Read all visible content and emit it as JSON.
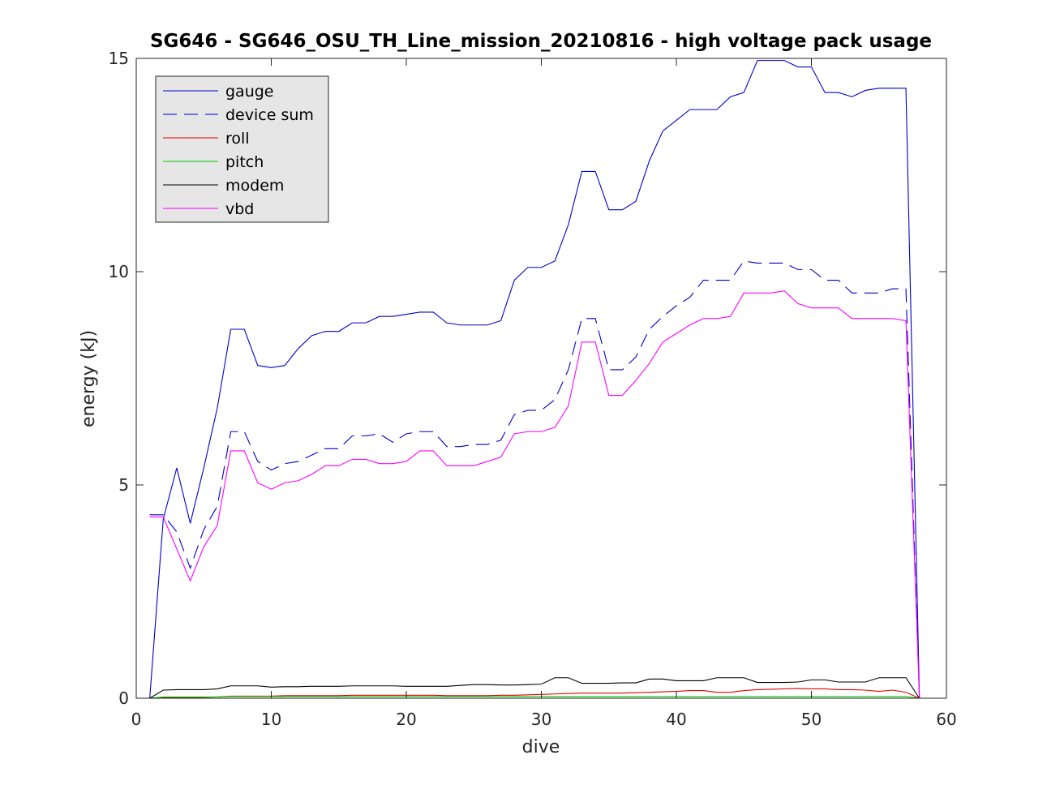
{
  "chart_data": {
    "type": "line",
    "title": "SG646 - SG646_OSU_TH_Line_mission_20210816 - high voltage pack usage",
    "xlabel": "dive",
    "ylabel": "energy (kJ)",
    "xlim": [
      0,
      60
    ],
    "ylim": [
      0,
      15
    ],
    "xticks": [
      0,
      10,
      20,
      30,
      40,
      50,
      60
    ],
    "yticks": [
      0,
      5,
      10,
      15
    ],
    "xtick_labels": [
      "0",
      "10",
      "20",
      "30",
      "40",
      "50",
      "60"
    ],
    "ytick_labels": [
      "0",
      "5",
      "10",
      "15"
    ],
    "grid": false,
    "legend_position": "top-left",
    "x": [
      1,
      2,
      3,
      4,
      5,
      6,
      7,
      8,
      9,
      10,
      11,
      12,
      13,
      14,
      15,
      16,
      17,
      18,
      19,
      20,
      21,
      22,
      23,
      24,
      25,
      26,
      27,
      28,
      29,
      30,
      31,
      32,
      33,
      34,
      35,
      36,
      37,
      38,
      39,
      40,
      41,
      42,
      43,
      44,
      45,
      46,
      47,
      48,
      49,
      50,
      51,
      52,
      53,
      54,
      55,
      56,
      57,
      58
    ],
    "series": [
      {
        "name": "gauge",
        "color": "#0000cc",
        "dash": "solid",
        "values": [
          0.0,
          4.2,
          5.4,
          4.1,
          5.4,
          6.8,
          8.65,
          8.65,
          7.8,
          7.75,
          7.8,
          8.2,
          8.5,
          8.6,
          8.6,
          8.8,
          8.8,
          8.95,
          8.95,
          9.0,
          9.05,
          9.05,
          8.8,
          8.75,
          8.75,
          8.75,
          8.85,
          9.8,
          10.1,
          10.1,
          10.25,
          11.1,
          12.35,
          12.35,
          11.45,
          11.45,
          11.65,
          12.6,
          13.3,
          13.55,
          13.8,
          13.8,
          13.8,
          14.1,
          14.2,
          14.95,
          14.95,
          14.95,
          14.8,
          14.8,
          14.2,
          14.2,
          14.1,
          14.25,
          14.3,
          14.3,
          14.3,
          0.0
        ]
      },
      {
        "name": "device sum",
        "color": "#0000cc",
        "dash": "dashed",
        "values": [
          4.3,
          4.3,
          3.9,
          3.05,
          3.95,
          4.5,
          6.25,
          6.25,
          5.55,
          5.35,
          5.5,
          5.55,
          5.7,
          5.85,
          5.85,
          6.15,
          6.15,
          6.2,
          6.0,
          6.2,
          6.25,
          6.25,
          5.9,
          5.9,
          5.95,
          5.95,
          6.05,
          6.65,
          6.75,
          6.75,
          7.0,
          7.7,
          8.9,
          8.9,
          7.7,
          7.7,
          8.0,
          8.65,
          8.95,
          9.2,
          9.4,
          9.8,
          9.8,
          9.8,
          10.25,
          10.2,
          10.2,
          10.2,
          10.05,
          10.05,
          9.8,
          9.8,
          9.5,
          9.5,
          9.5,
          9.6,
          9.6,
          0.0
        ]
      },
      {
        "name": "roll",
        "color": "#e60000",
        "dash": "solid",
        "values": [
          0.0,
          0.02,
          0.02,
          0.02,
          0.02,
          0.03,
          0.05,
          0.05,
          0.05,
          0.05,
          0.06,
          0.06,
          0.06,
          0.06,
          0.06,
          0.07,
          0.07,
          0.07,
          0.07,
          0.07,
          0.07,
          0.07,
          0.06,
          0.06,
          0.06,
          0.06,
          0.07,
          0.07,
          0.08,
          0.09,
          0.1,
          0.11,
          0.12,
          0.12,
          0.12,
          0.12,
          0.13,
          0.14,
          0.15,
          0.16,
          0.18,
          0.18,
          0.14,
          0.14,
          0.18,
          0.2,
          0.21,
          0.22,
          0.23,
          0.22,
          0.22,
          0.2,
          0.2,
          0.19,
          0.16,
          0.19,
          0.14,
          0.0
        ]
      },
      {
        "name": "pitch",
        "color": "#00cc00",
        "dash": "solid",
        "values": [
          0.0,
          0.03,
          0.03,
          0.03,
          0.03,
          0.03,
          0.04,
          0.04,
          0.04,
          0.04,
          0.04,
          0.04,
          0.04,
          0.04,
          0.04,
          0.04,
          0.04,
          0.04,
          0.04,
          0.04,
          0.04,
          0.04,
          0.04,
          0.04,
          0.04,
          0.04,
          0.04,
          0.04,
          0.04,
          0.04,
          0.04,
          0.04,
          0.04,
          0.04,
          0.04,
          0.04,
          0.04,
          0.04,
          0.04,
          0.04,
          0.04,
          0.04,
          0.04,
          0.04,
          0.04,
          0.04,
          0.04,
          0.04,
          0.04,
          0.04,
          0.04,
          0.04,
          0.04,
          0.04,
          0.04,
          0.04,
          0.04,
          0.0
        ]
      },
      {
        "name": "modem",
        "color": "#000000",
        "dash": "solid",
        "values": [
          0.0,
          0.19,
          0.2,
          0.2,
          0.2,
          0.22,
          0.29,
          0.29,
          0.29,
          0.26,
          0.27,
          0.27,
          0.28,
          0.28,
          0.28,
          0.29,
          0.29,
          0.29,
          0.29,
          0.28,
          0.28,
          0.28,
          0.28,
          0.3,
          0.32,
          0.32,
          0.31,
          0.31,
          0.32,
          0.33,
          0.48,
          0.48,
          0.35,
          0.35,
          0.35,
          0.36,
          0.36,
          0.45,
          0.45,
          0.41,
          0.41,
          0.41,
          0.48,
          0.48,
          0.48,
          0.37,
          0.37,
          0.37,
          0.38,
          0.43,
          0.43,
          0.38,
          0.38,
          0.38,
          0.48,
          0.48,
          0.48,
          0.0
        ]
      },
      {
        "name": "vbd",
        "color": "#ff00ff",
        "dash": "solid",
        "values": [
          4.25,
          4.25,
          3.5,
          2.75,
          3.55,
          4.05,
          5.8,
          5.8,
          5.05,
          4.9,
          5.05,
          5.1,
          5.25,
          5.45,
          5.45,
          5.6,
          5.6,
          5.5,
          5.5,
          5.55,
          5.8,
          5.8,
          5.45,
          5.45,
          5.45,
          5.55,
          5.65,
          6.2,
          6.25,
          6.25,
          6.35,
          6.85,
          8.35,
          8.35,
          7.1,
          7.1,
          7.45,
          7.85,
          8.35,
          8.55,
          8.75,
          8.9,
          8.9,
          8.95,
          9.5,
          9.5,
          9.5,
          9.55,
          9.25,
          9.15,
          9.15,
          9.15,
          8.9,
          8.9,
          8.9,
          8.9,
          8.85,
          0.0
        ]
      }
    ]
  }
}
